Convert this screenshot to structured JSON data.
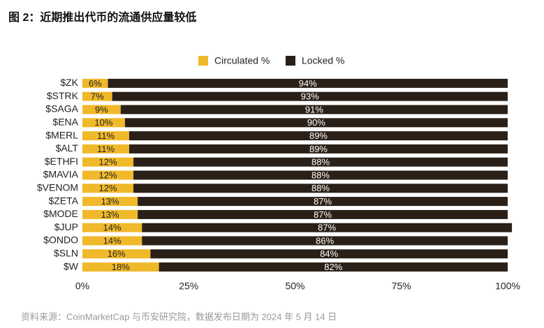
{
  "chart_data": {
    "type": "bar",
    "orientation": "horizontal",
    "stacked": true,
    "title": "图 2：近期推出代币的流通供应量较低",
    "source": "资料来源：CoinMarketCap 与币安研究院，数据发布日期为 2024 年 5 月 14 日",
    "categories": [
      "$ZK",
      "$STRK",
      "$SAGA",
      "$ENA",
      "$MERL",
      "$ALT",
      "$ETHFI",
      "$MAVIA",
      "$VENOM",
      "$ZETA",
      "$MODE",
      "$JUP",
      "$ONDO",
      "$SLN",
      "$W"
    ],
    "series": [
      {
        "name": "Circulated %",
        "color": "#f0b92a",
        "values": [
          6,
          7,
          9,
          10,
          11,
          11,
          12,
          12,
          12,
          13,
          13,
          14,
          14,
          16,
          18
        ],
        "value_labels": [
          "6%",
          "7%",
          "9%",
          "10%",
          "11%",
          "11%",
          "12%",
          "12%",
          "12%",
          "13%",
          "13%",
          "14%",
          "14%",
          "16%",
          "18%"
        ]
      },
      {
        "name": "Locked %",
        "color": "#2b2017",
        "values": [
          94,
          93,
          91,
          90,
          89,
          89,
          88,
          88,
          88,
          87,
          87,
          87,
          86,
          84,
          82
        ],
        "value_labels": [
          "94%",
          "93%",
          "91%",
          "90%",
          "89%",
          "89%",
          "88%",
          "88%",
          "88%",
          "87%",
          "87%",
          "87%",
          "86%",
          "84%",
          "82%"
        ]
      }
    ],
    "xlim": [
      0,
      100
    ],
    "xticks": [
      {
        "value": 0,
        "label": "0%"
      },
      {
        "value": 25,
        "label": "25%"
      },
      {
        "value": 50,
        "label": "50%"
      },
      {
        "value": 75,
        "label": "75%"
      },
      {
        "value": 100,
        "label": "100%"
      }
    ],
    "legend": "top"
  }
}
